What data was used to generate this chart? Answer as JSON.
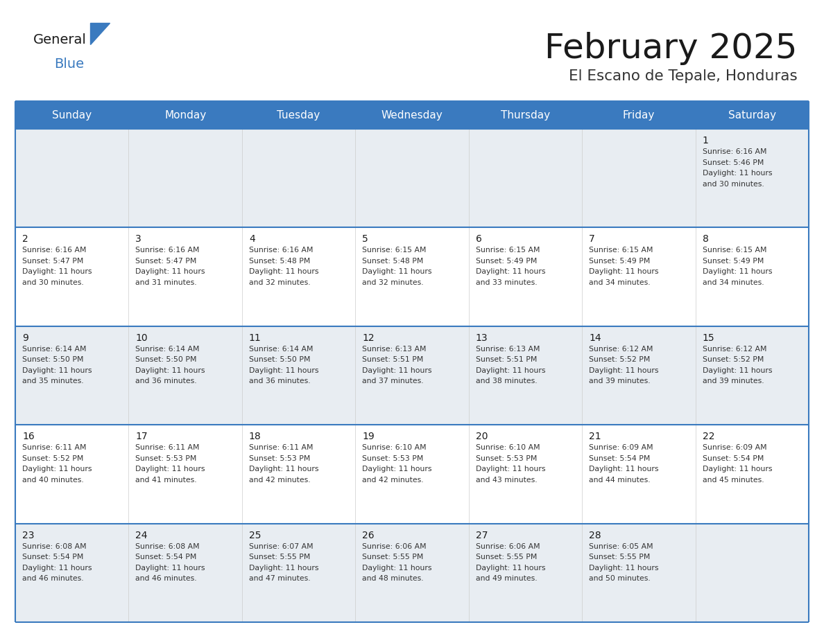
{
  "title": "February 2025",
  "subtitle": "El Escano de Tepale, Honduras",
  "header_bg": "#3a7abf",
  "header_text_color": "#ffffff",
  "row_bg_odd": "#e8edf2",
  "row_bg_even": "#ffffff",
  "separator_color": "#3a7abf",
  "day_headers": [
    "Sunday",
    "Monday",
    "Tuesday",
    "Wednesday",
    "Thursday",
    "Friday",
    "Saturday"
  ],
  "title_color": "#1a1a1a",
  "subtitle_color": "#333333",
  "cell_text_color": "#333333",
  "day_num_color": "#1a1a1a",
  "logo_general_color": "#1a1a1a",
  "logo_blue_color": "#3a7abf",
  "logo_triangle_color": "#3a7abf",
  "calendar": [
    [
      null,
      null,
      null,
      null,
      null,
      null,
      {
        "day": 1,
        "sunrise": "6:16 AM",
        "sunset": "5:46 PM",
        "daylight_h": "11",
        "daylight_m": "30"
      }
    ],
    [
      {
        "day": 2,
        "sunrise": "6:16 AM",
        "sunset": "5:47 PM",
        "daylight_h": "11",
        "daylight_m": "30"
      },
      {
        "day": 3,
        "sunrise": "6:16 AM",
        "sunset": "5:47 PM",
        "daylight_h": "11",
        "daylight_m": "31"
      },
      {
        "day": 4,
        "sunrise": "6:16 AM",
        "sunset": "5:48 PM",
        "daylight_h": "11",
        "daylight_m": "32"
      },
      {
        "day": 5,
        "sunrise": "6:15 AM",
        "sunset": "5:48 PM",
        "daylight_h": "11",
        "daylight_m": "32"
      },
      {
        "day": 6,
        "sunrise": "6:15 AM",
        "sunset": "5:49 PM",
        "daylight_h": "11",
        "daylight_m": "33"
      },
      {
        "day": 7,
        "sunrise": "6:15 AM",
        "sunset": "5:49 PM",
        "daylight_h": "11",
        "daylight_m": "34"
      },
      {
        "day": 8,
        "sunrise": "6:15 AM",
        "sunset": "5:49 PM",
        "daylight_h": "11",
        "daylight_m": "34"
      }
    ],
    [
      {
        "day": 9,
        "sunrise": "6:14 AM",
        "sunset": "5:50 PM",
        "daylight_h": "11",
        "daylight_m": "35"
      },
      {
        "day": 10,
        "sunrise": "6:14 AM",
        "sunset": "5:50 PM",
        "daylight_h": "11",
        "daylight_m": "36"
      },
      {
        "day": 11,
        "sunrise": "6:14 AM",
        "sunset": "5:50 PM",
        "daylight_h": "11",
        "daylight_m": "36"
      },
      {
        "day": 12,
        "sunrise": "6:13 AM",
        "sunset": "5:51 PM",
        "daylight_h": "11",
        "daylight_m": "37"
      },
      {
        "day": 13,
        "sunrise": "6:13 AM",
        "sunset": "5:51 PM",
        "daylight_h": "11",
        "daylight_m": "38"
      },
      {
        "day": 14,
        "sunrise": "6:12 AM",
        "sunset": "5:52 PM",
        "daylight_h": "11",
        "daylight_m": "39"
      },
      {
        "day": 15,
        "sunrise": "6:12 AM",
        "sunset": "5:52 PM",
        "daylight_h": "11",
        "daylight_m": "39"
      }
    ],
    [
      {
        "day": 16,
        "sunrise": "6:11 AM",
        "sunset": "5:52 PM",
        "daylight_h": "11",
        "daylight_m": "40"
      },
      {
        "day": 17,
        "sunrise": "6:11 AM",
        "sunset": "5:53 PM",
        "daylight_h": "11",
        "daylight_m": "41"
      },
      {
        "day": 18,
        "sunrise": "6:11 AM",
        "sunset": "5:53 PM",
        "daylight_h": "11",
        "daylight_m": "42"
      },
      {
        "day": 19,
        "sunrise": "6:10 AM",
        "sunset": "5:53 PM",
        "daylight_h": "11",
        "daylight_m": "42"
      },
      {
        "day": 20,
        "sunrise": "6:10 AM",
        "sunset": "5:53 PM",
        "daylight_h": "11",
        "daylight_m": "43"
      },
      {
        "day": 21,
        "sunrise": "6:09 AM",
        "sunset": "5:54 PM",
        "daylight_h": "11",
        "daylight_m": "44"
      },
      {
        "day": 22,
        "sunrise": "6:09 AM",
        "sunset": "5:54 PM",
        "daylight_h": "11",
        "daylight_m": "45"
      }
    ],
    [
      {
        "day": 23,
        "sunrise": "6:08 AM",
        "sunset": "5:54 PM",
        "daylight_h": "11",
        "daylight_m": "46"
      },
      {
        "day": 24,
        "sunrise": "6:08 AM",
        "sunset": "5:54 PM",
        "daylight_h": "11",
        "daylight_m": "46"
      },
      {
        "day": 25,
        "sunrise": "6:07 AM",
        "sunset": "5:55 PM",
        "daylight_h": "11",
        "daylight_m": "47"
      },
      {
        "day": 26,
        "sunrise": "6:06 AM",
        "sunset": "5:55 PM",
        "daylight_h": "11",
        "daylight_m": "48"
      },
      {
        "day": 27,
        "sunrise": "6:06 AM",
        "sunset": "5:55 PM",
        "daylight_h": "11",
        "daylight_m": "49"
      },
      {
        "day": 28,
        "sunrise": "6:05 AM",
        "sunset": "5:55 PM",
        "daylight_h": "11",
        "daylight_m": "50"
      },
      null
    ]
  ],
  "num_rows": 5,
  "num_cols": 7
}
